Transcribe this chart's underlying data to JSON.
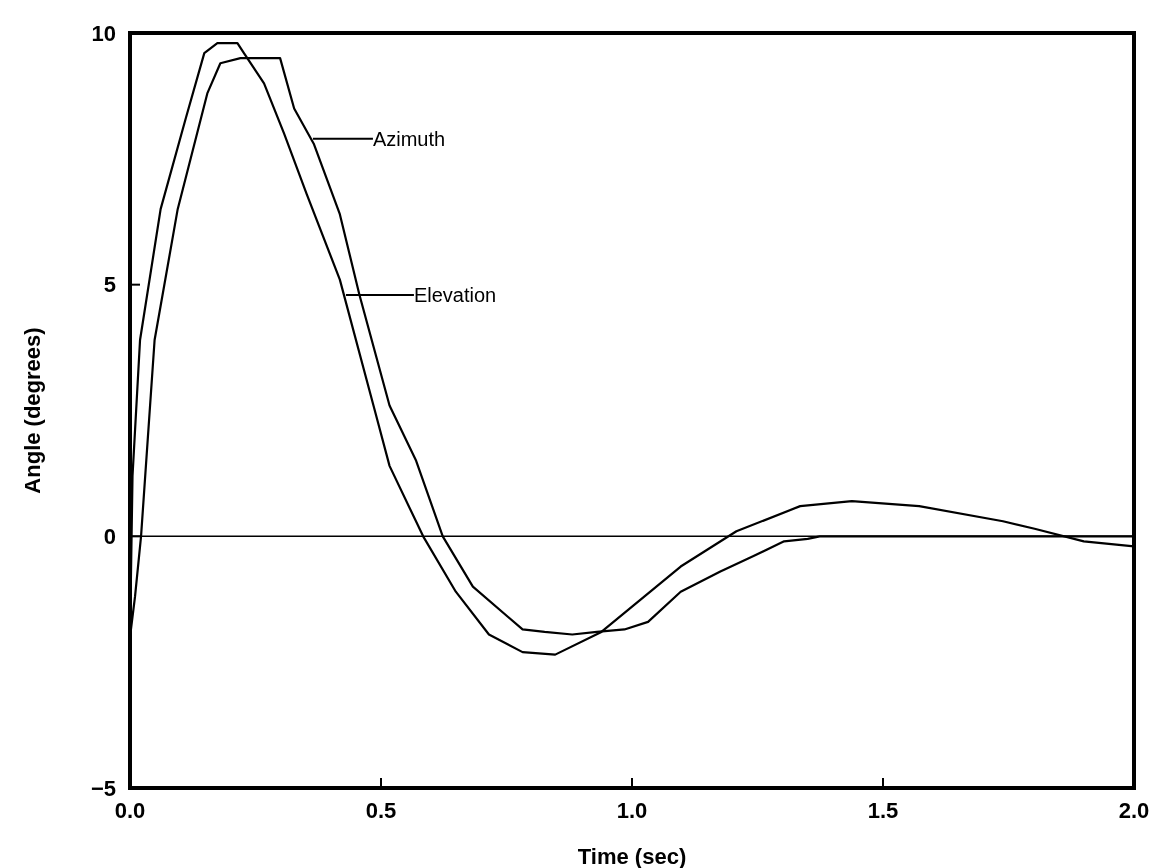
{
  "chart_data": {
    "type": "line",
    "xlabel": "Time (sec)",
    "ylabel": "Angle (degrees)",
    "xlim": [
      0,
      2
    ],
    "xticks": [
      {
        "value": 0,
        "label": "0.0"
      },
      {
        "value": 0.5,
        "label": "0.5"
      },
      {
        "value": 1,
        "label": "1.0"
      },
      {
        "value": 1.5,
        "label": "1.5"
      },
      {
        "value": 2,
        "label": "2.0"
      }
    ],
    "ylim": [
      -5,
      10
    ],
    "yticks": [
      {
        "value": -5,
        "label": "−5"
      },
      0,
      5,
      10
    ],
    "grid": false,
    "legend": "top",
    "marker": "none",
    "line_style": "solid",
    "ref_lines": [
      {
        "axis": "y",
        "value": 0,
        "color": "#000000"
      }
    ],
    "series": [
      {
        "name": "Azimuth",
        "color": "#000000",
        "x": [
          0,
          0.01,
          0.022,
          0.049,
          0.095,
          0.154,
          0.18,
          0.22,
          0.25,
          0.279,
          0.299,
          0.327,
          0.366,
          0.418,
          0.457,
          0.517,
          0.57,
          0.623,
          0.683,
          0.782,
          0.826,
          0.881,
          0.93,
          0.985,
          1.032,
          1.097,
          1.176,
          1.24,
          1.303,
          1.35,
          1.374,
          1.5,
          1.7,
          1.85,
          2.0
        ],
        "values": [
          -2,
          -1.2,
          0,
          3.9,
          6.5,
          8.8,
          9.4,
          9.5,
          9.5,
          9.5,
          9.5,
          8.5,
          7.8,
          6.4,
          4.8,
          2.6,
          1.5,
          0,
          -1,
          -1.85,
          -1.9,
          -1.95,
          -1.9,
          -1.85,
          -1.7,
          -1.1,
          -0.7,
          -0.4,
          -0.1,
          -0.05,
          0,
          0,
          0,
          0,
          0
        ]
      },
      {
        "name": "Elevation",
        "color": "#000000",
        "x": [
          0,
          0.005,
          0.02,
          0.061,
          0.111,
          0.148,
          0.174,
          0.214,
          0.227,
          0.267,
          0.307,
          0.352,
          0.418,
          0.485,
          0.517,
          0.584,
          0.649,
          0.715,
          0.782,
          0.847,
          0.939,
          1.097,
          1.208,
          1.335,
          1.438,
          1.572,
          1.739,
          1.802,
          1.9,
          2.0
        ],
        "values": [
          -2,
          1.2,
          3.9,
          6.5,
          8.3,
          9.6,
          9.8,
          9.8,
          9.6,
          9,
          8,
          6.8,
          5.1,
          2.6,
          1.4,
          0,
          -1.1,
          -1.95,
          -2.3,
          -2.35,
          -1.9,
          -0.6,
          0.1,
          0.6,
          0.7,
          0.6,
          0.3,
          0.15,
          -0.1,
          -0.2
        ]
      }
    ]
  }
}
